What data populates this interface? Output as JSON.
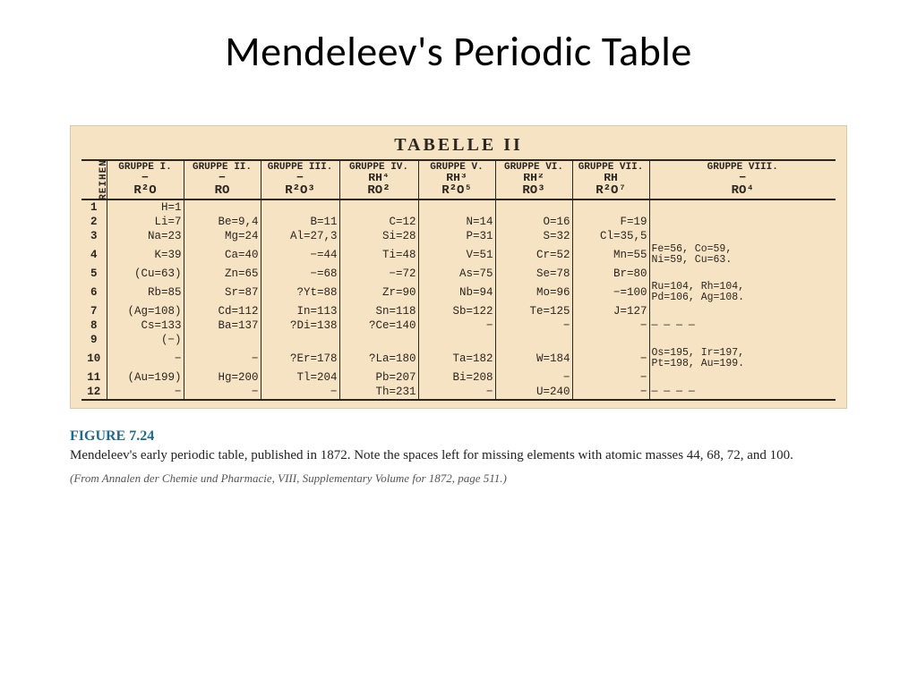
{
  "title": "Mendeleev's Periodic Table",
  "scan": {
    "background": "#f5e3c4",
    "ink": "#2b2620",
    "heading": "TABELLE  II",
    "row_label": "REIHEN",
    "columns": [
      {
        "name": "GRUPPE I.",
        "oxide": "R²O"
      },
      {
        "name": "GRUPPE II.",
        "oxide": "RO"
      },
      {
        "name": "GRUPPE III.",
        "oxide": "R²O³"
      },
      {
        "name": "GRUPPE IV.",
        "hydride": "RH⁴",
        "oxide": "RO²"
      },
      {
        "name": "GRUPPE V.",
        "hydride": "RH³",
        "oxide": "R²O⁵"
      },
      {
        "name": "GRUPPE VI.",
        "hydride": "RH²",
        "oxide": "RO³"
      },
      {
        "name": "GRUPPE VII.",
        "hydride": "RH",
        "oxide": "R²O⁷"
      },
      {
        "name": "GRUPPE VIII.",
        "oxide": "RO⁴"
      }
    ],
    "rows": [
      {
        "n": "1",
        "c": [
          "H=1",
          "",
          "",
          "",
          "",
          "",
          "",
          ""
        ]
      },
      {
        "n": "2",
        "c": [
          "Li=7",
          "Be=9,4",
          "B=11",
          "C=12",
          "N=14",
          "O=16",
          "F=19",
          ""
        ]
      },
      {
        "n": "3",
        "c": [
          "Na=23",
          "Mg=24",
          "Al=27,3",
          "Si=28",
          "P=31",
          "S=32",
          "Cl=35,5",
          ""
        ]
      },
      {
        "n": "4",
        "c": [
          "K=39",
          "Ca=40",
          "−=44",
          "Ti=48",
          "V=51",
          "Cr=52",
          "Mn=55",
          "Fe=56, Co=59,\nNi=59, Cu=63."
        ]
      },
      {
        "n": "5",
        "c": [
          "(Cu=63)",
          "Zn=65",
          "−=68",
          "−=72",
          "As=75",
          "Se=78",
          "Br=80",
          ""
        ]
      },
      {
        "n": "6",
        "c": [
          "Rb=85",
          "Sr=87",
          "?Yt=88",
          "Zr=90",
          "Nb=94",
          "Mo=96",
          "−=100",
          "Ru=104, Rh=104,\nPd=106, Ag=108."
        ]
      },
      {
        "n": "7",
        "c": [
          "(Ag=108)",
          "Cd=112",
          "In=113",
          "Sn=118",
          "Sb=122",
          "Te=125",
          "J=127",
          ""
        ]
      },
      {
        "n": "8",
        "c": [
          "Cs=133",
          "Ba=137",
          "?Di=138",
          "?Ce=140",
          "−",
          "−",
          "−",
          "— — — —"
        ]
      },
      {
        "n": "9",
        "c": [
          "(−)",
          "",
          "",
          "",
          "",
          "",
          "",
          ""
        ]
      },
      {
        "n": "10",
        "c": [
          "−",
          "−",
          "?Er=178",
          "?La=180",
          "Ta=182",
          "W=184",
          "−",
          "Os=195, Ir=197,\nPt=198, Au=199."
        ]
      },
      {
        "n": "11",
        "c": [
          "(Au=199)",
          "Hg=200",
          "Tl=204",
          "Pb=207",
          "Bi=208",
          "−",
          "−",
          ""
        ]
      },
      {
        "n": "12",
        "c": [
          "−",
          "−",
          "−",
          "Th=231",
          "−",
          "U=240",
          "−",
          "— — — —"
        ]
      }
    ]
  },
  "caption": {
    "label": "FIGURE 7.24",
    "text": "Mendeleev's early periodic table, published in 1872. Note the spaces left for missing elements with atomic masses 44, 68, 72, and 100.",
    "source": "(From Annalen der Chemie und Pharmacie, VIII, Supplementary Volume for 1872, page 511.)"
  }
}
